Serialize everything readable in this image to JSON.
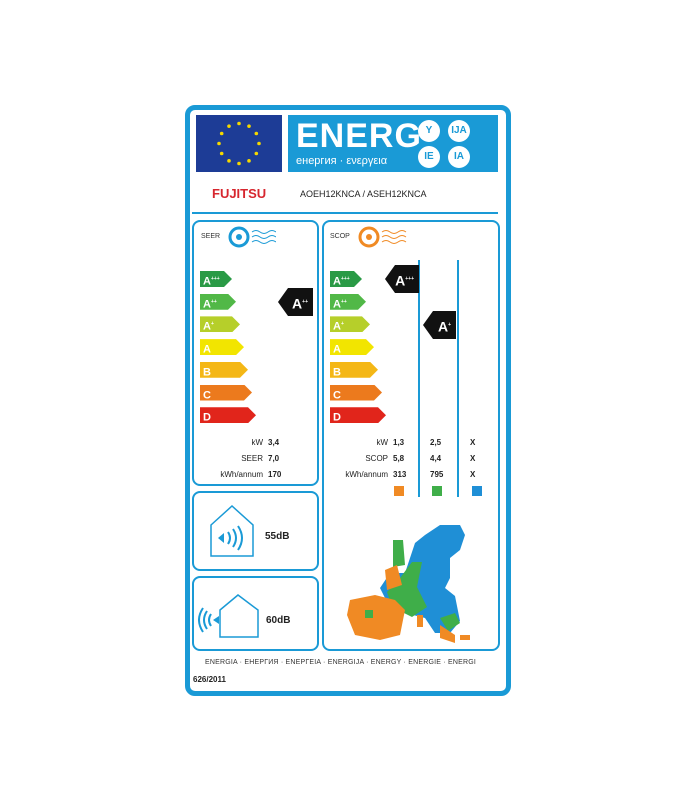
{
  "header": {
    "title": "ENERG",
    "subtitle": "енергия · ενεργεια",
    "badges": [
      "Y",
      "IJA",
      "IE",
      "IA"
    ]
  },
  "brand": "FUJITSU",
  "model": "AOEH12KNCA / ASEH12KNCA",
  "classes": [
    {
      "label": "A",
      "sup": "+++",
      "color": "#2a9a46"
    },
    {
      "label": "A",
      "sup": "++",
      "color": "#51b847"
    },
    {
      "label": "A",
      "sup": "+",
      "color": "#b6cf2a"
    },
    {
      "label": "A",
      "sup": "",
      "color": "#f2e500"
    },
    {
      "label": "B",
      "sup": "",
      "color": "#f4b716"
    },
    {
      "label": "C",
      "sup": "",
      "color": "#ec7a1d"
    },
    {
      "label": "D",
      "sup": "",
      "color": "#e1251b"
    }
  ],
  "cooling": {
    "label": "SEER",
    "rating": {
      "label": "A",
      "sup": "++"
    },
    "rows": [
      {
        "key": "kW",
        "value": "3,4"
      },
      {
        "key": "SEER",
        "value": "7,0"
      },
      {
        "key": "kWh/annum",
        "value": "170"
      }
    ]
  },
  "heating": {
    "label": "SCOP",
    "ratings": [
      {
        "label": "A",
        "sup": "+++"
      },
      {
        "label": "A",
        "sup": "+"
      }
    ],
    "rows": [
      {
        "key": "kW",
        "values": [
          "1,3",
          "2,5",
          "X"
        ]
      },
      {
        "key": "SCOP",
        "values": [
          "5,8",
          "4,4",
          "X"
        ]
      },
      {
        "key": "kWh/annum",
        "values": [
          "313",
          "795",
          "X"
        ]
      }
    ],
    "zone_colors": [
      "#f08a24",
      "#3fae49",
      "#1f8fd6"
    ]
  },
  "noise": {
    "indoor": "55dB",
    "outdoor": "60dB"
  },
  "footer": "ENERGIA · ЕНЕРГИЯ · ΕΝΕΡΓΕΙΑ · ENERGIJA · ENERGY · ENERGIE · ENERGI",
  "regulation": "626/2011",
  "colors": {
    "frame": "#1a9ad6",
    "eu_blue": "#1d3c96",
    "brand_red": "#d7262e"
  }
}
